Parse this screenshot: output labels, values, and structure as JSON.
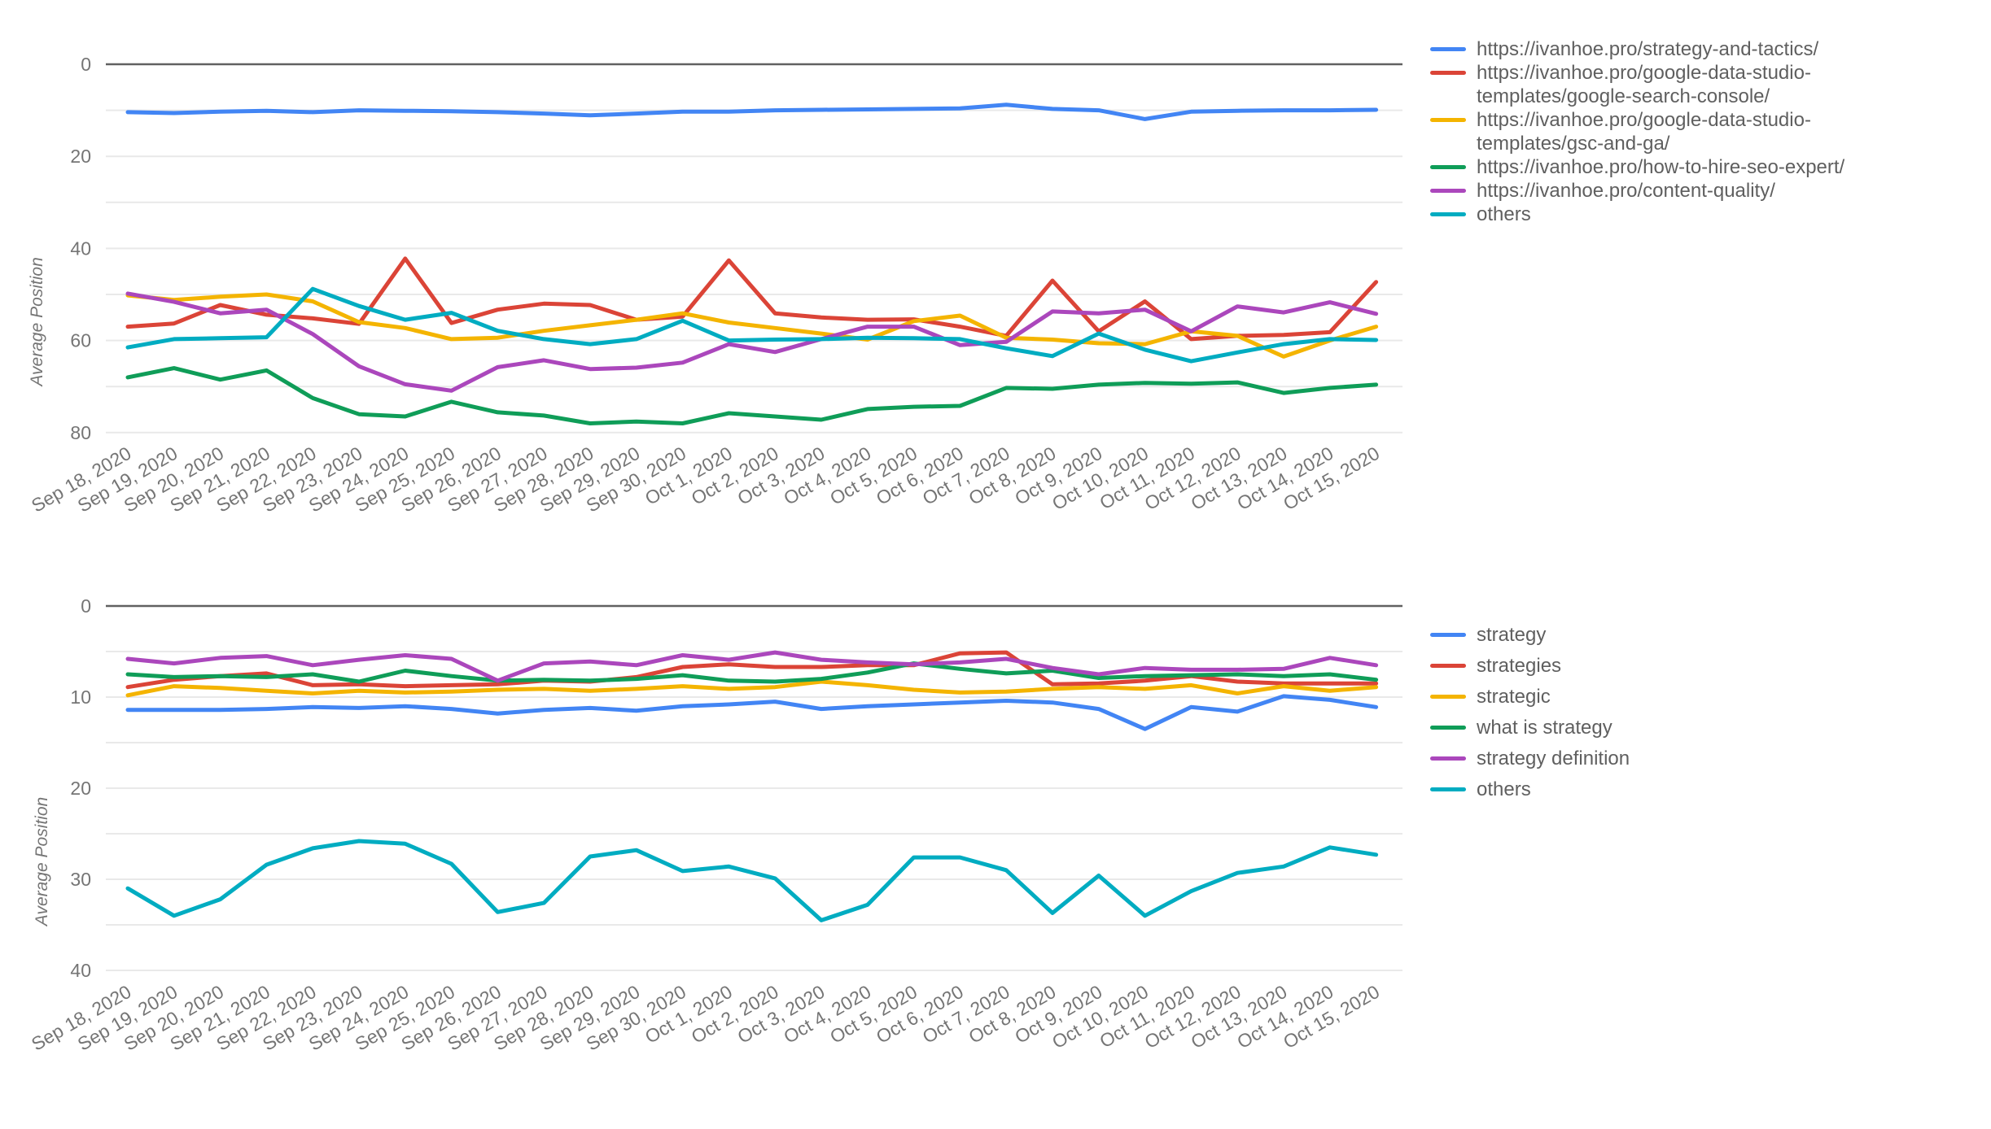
{
  "chart_data": [
    {
      "type": "line",
      "title": "",
      "ylabel": "Average Position",
      "y_axis": {
        "min": 0,
        "max": 80,
        "inverted": true,
        "tick_labels": [
          0,
          20,
          40,
          60,
          80
        ],
        "grid_step": 10
      },
      "legend_position": "right",
      "grid": true,
      "categories": [
        "Sep 18, 2020",
        "Sep 19, 2020",
        "Sep 20, 2020",
        "Sep 21, 2020",
        "Sep 22, 2020",
        "Sep 23, 2020",
        "Sep 24, 2020",
        "Sep 25, 2020",
        "Sep 26, 2020",
        "Sep 27, 2020",
        "Sep 28, 2020",
        "Sep 29, 2020",
        "Sep 30, 2020",
        "Oct 1, 2020",
        "Oct 2, 2020",
        "Oct 3, 2020",
        "Oct 4, 2020",
        "Oct 5, 2020",
        "Oct 6, 2020",
        "Oct 7, 2020",
        "Oct 8, 2020",
        "Oct 9, 2020",
        "Oct 10, 2020",
        "Oct 11, 2020",
        "Oct 12, 2020",
        "Oct 13, 2020",
        "Oct 14, 2020",
        "Oct 15, 2020"
      ],
      "series": [
        {
          "name": "https://ivanhoe.pro/strategy-and-tactics/",
          "color": "#4285F4",
          "values": [
            10.4,
            10.6,
            10.3,
            10.1,
            10.4,
            10.0,
            10.1,
            10.2,
            10.4,
            10.7,
            11.1,
            10.7,
            10.3,
            10.3,
            10.0,
            9.9,
            9.8,
            9.7,
            9.6,
            8.8,
            9.7,
            10.0,
            11.9,
            10.3,
            10.1,
            10.0,
            10.0,
            9.9
          ]
        },
        {
          "name": "https://ivanhoe.pro/google-data-studio-\ntemplates/google-search-console/",
          "color": "#DB4437",
          "values": [
            57.0,
            56.3,
            52.3,
            54.4,
            55.2,
            56.4,
            42.2,
            56.2,
            53.3,
            52.0,
            52.3,
            55.5,
            54.8,
            42.6,
            54.1,
            55.0,
            55.5,
            55.4,
            57.0,
            59.0,
            47.0,
            58.0,
            51.5,
            59.7,
            59.0,
            58.8,
            58.2,
            47.3
          ]
        },
        {
          "name": "https://ivanhoe.pro/google-data-studio-\ntemplates/gsc-and-ga/",
          "color": "#F4B400",
          "values": [
            50.2,
            51.2,
            50.5,
            50.0,
            51.5,
            56.0,
            57.3,
            59.7,
            59.4,
            57.9,
            56.7,
            55.5,
            54.1,
            56.1,
            57.3,
            58.5,
            59.8,
            55.8,
            54.6,
            59.4,
            59.8,
            60.6,
            60.8,
            58.0,
            59.0,
            63.5,
            60.0,
            57.0
          ]
        },
        {
          "name": "https://ivanhoe.pro/how-to-hire-seo-expert/",
          "color": "#0F9D58",
          "values": [
            68.0,
            66.0,
            68.5,
            66.5,
            72.5,
            76.0,
            76.5,
            73.3,
            75.6,
            76.3,
            78.0,
            77.6,
            78.0,
            75.8,
            76.5,
            77.2,
            74.9,
            74.4,
            74.2,
            70.3,
            70.5,
            69.6,
            69.2,
            69.4,
            69.1,
            71.4,
            70.3,
            69.6
          ]
        },
        {
          "name": "https://ivanhoe.pro/content-quality/",
          "color": "#AB47BC",
          "values": [
            49.8,
            51.6,
            54.1,
            53.3,
            58.6,
            65.6,
            69.5,
            70.9,
            65.8,
            64.3,
            66.2,
            65.9,
            64.8,
            60.8,
            62.5,
            59.7,
            57.0,
            57.0,
            61.0,
            60.3,
            53.7,
            54.1,
            53.3,
            58.0,
            52.6,
            53.9,
            51.7,
            54.2
          ]
        },
        {
          "name": "others",
          "color": "#00ACC1",
          "values": [
            61.5,
            59.7,
            59.5,
            59.3,
            48.8,
            52.5,
            55.5,
            54.0,
            57.9,
            59.7,
            60.8,
            59.7,
            55.7,
            60.0,
            59.8,
            59.7,
            59.4,
            59.5,
            59.7,
            61.7,
            63.4,
            58.5,
            62.0,
            64.5,
            62.6,
            60.8,
            59.7,
            59.9
          ]
        }
      ]
    },
    {
      "type": "line",
      "title": "",
      "ylabel": "Average Position",
      "y_axis": {
        "min": 0,
        "max": 40,
        "inverted": true,
        "tick_labels": [
          0,
          10,
          20,
          30,
          40
        ],
        "grid_step": 5
      },
      "legend_position": "right",
      "grid": true,
      "categories": [
        "Sep 18, 2020",
        "Sep 19, 2020",
        "Sep 20, 2020",
        "Sep 21, 2020",
        "Sep 22, 2020",
        "Sep 23, 2020",
        "Sep 24, 2020",
        "Sep 25, 2020",
        "Sep 26, 2020",
        "Sep 27, 2020",
        "Sep 28, 2020",
        "Sep 29, 2020",
        "Sep 30, 2020",
        "Oct 1, 2020",
        "Oct 2, 2020",
        "Oct 3, 2020",
        "Oct 4, 2020",
        "Oct 5, 2020",
        "Oct 6, 2020",
        "Oct 7, 2020",
        "Oct 8, 2020",
        "Oct 9, 2020",
        "Oct 10, 2020",
        "Oct 11, 2020",
        "Oct 12, 2020",
        "Oct 13, 2020",
        "Oct 14, 2020",
        "Oct 15, 2020"
      ],
      "series": [
        {
          "name": "strategy",
          "color": "#4285F4",
          "values": [
            11.4,
            11.4,
            11.4,
            11.3,
            11.1,
            11.2,
            11.0,
            11.3,
            11.8,
            11.4,
            11.2,
            11.5,
            11.0,
            10.8,
            10.5,
            11.3,
            11.0,
            10.8,
            10.6,
            10.4,
            10.6,
            11.3,
            13.5,
            11.1,
            11.6,
            9.9,
            10.3,
            11.1
          ]
        },
        {
          "name": "strategies",
          "color": "#DB4437",
          "values": [
            8.9,
            8.1,
            7.7,
            7.4,
            8.7,
            8.6,
            8.8,
            8.7,
            8.6,
            8.2,
            8.3,
            7.8,
            6.7,
            6.4,
            6.7,
            6.7,
            6.5,
            6.5,
            5.2,
            5.1,
            8.6,
            8.5,
            8.2,
            7.7,
            8.3,
            8.5,
            8.5,
            8.5
          ]
        },
        {
          "name": "strategic",
          "color": "#F4B400",
          "values": [
            9.8,
            8.8,
            9.0,
            9.3,
            9.6,
            9.3,
            9.5,
            9.4,
            9.2,
            9.1,
            9.3,
            9.1,
            8.8,
            9.1,
            8.9,
            8.3,
            8.7,
            9.2,
            9.5,
            9.4,
            9.1,
            8.9,
            9.1,
            8.7,
            9.6,
            8.8,
            9.3,
            8.9
          ]
        },
        {
          "name": "what is strategy",
          "color": "#0F9D58",
          "values": [
            7.5,
            7.8,
            7.7,
            7.8,
            7.5,
            8.3,
            7.1,
            7.7,
            8.2,
            8.1,
            8.2,
            8.0,
            7.6,
            8.2,
            8.3,
            8.0,
            7.3,
            6.3,
            6.9,
            7.4,
            7.1,
            7.9,
            7.7,
            7.6,
            7.5,
            7.7,
            7.5,
            8.1
          ]
        },
        {
          "name": "strategy definition",
          "color": "#AB47BC",
          "values": [
            5.8,
            6.3,
            5.7,
            5.5,
            6.5,
            5.9,
            5.4,
            5.8,
            8.2,
            6.3,
            6.1,
            6.5,
            5.4,
            5.9,
            5.1,
            5.9,
            6.2,
            6.4,
            6.2,
            5.8,
            6.8,
            7.5,
            6.8,
            7.0,
            7.0,
            6.9,
            5.7,
            6.5
          ]
        },
        {
          "name": "others",
          "color": "#00ACC1",
          "values": [
            31.0,
            34.0,
            32.2,
            28.4,
            26.6,
            25.8,
            26.1,
            28.3,
            33.6,
            32.6,
            27.5,
            26.8,
            29.1,
            28.6,
            29.9,
            34.5,
            32.8,
            27.6,
            27.6,
            29.0,
            33.7,
            29.6,
            34.0,
            31.3,
            29.3,
            28.6,
            26.5,
            27.3
          ]
        }
      ]
    }
  ],
  "style": {
    "axis_text_color": "#757575",
    "zero_line_color": "#616161",
    "grid_line_color": "#e9e9e9",
    "legend_text_color": "#5f5f5f"
  }
}
